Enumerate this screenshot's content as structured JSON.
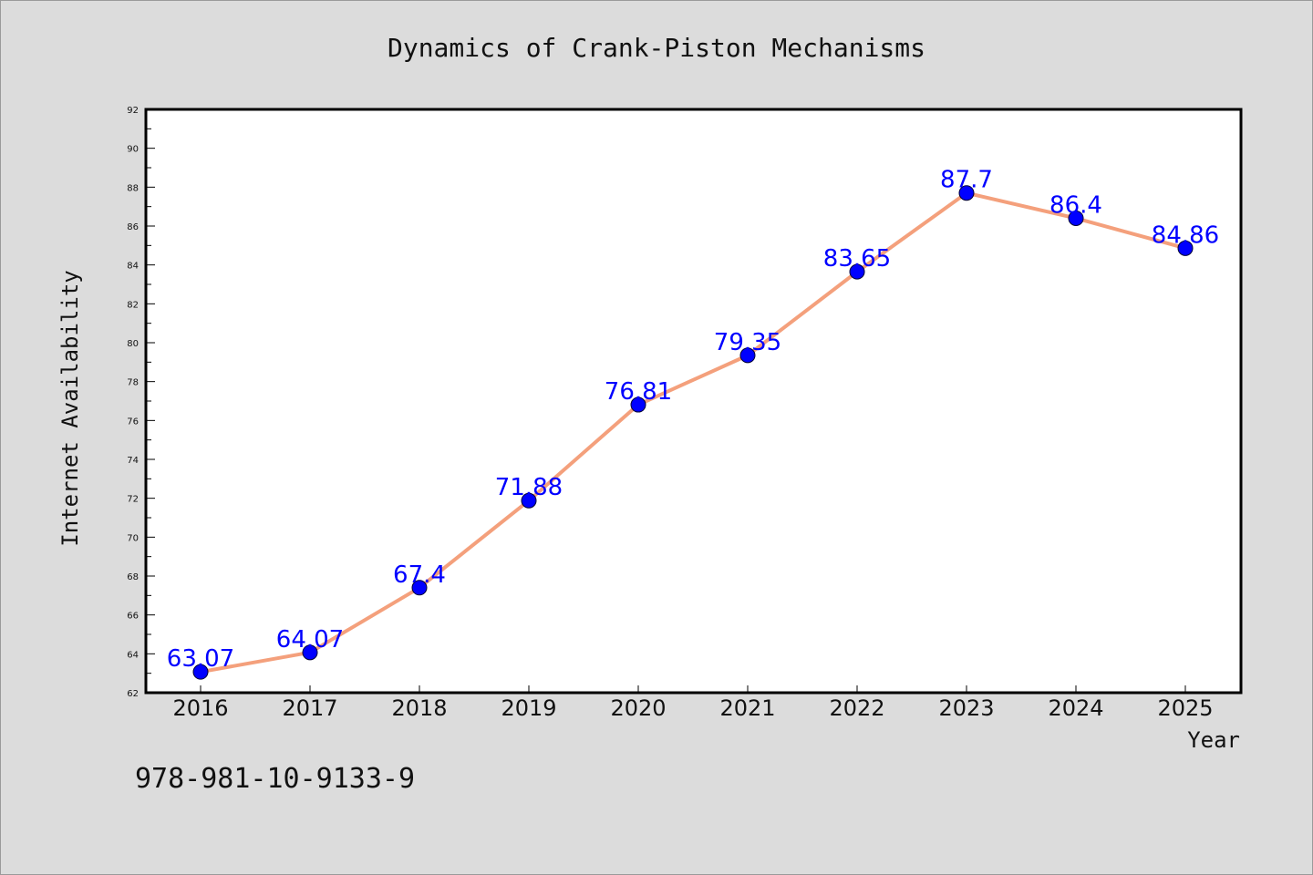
{
  "chart_data": {
    "type": "line",
    "title": "Dynamics of Crank-Piston Mechanisms",
    "xlabel": "Year",
    "ylabel": "Internet Availability",
    "categories": [
      "2016",
      "2017",
      "2018",
      "2019",
      "2020",
      "2021",
      "2022",
      "2023",
      "2024",
      "2025"
    ],
    "values": [
      63.07,
      64.07,
      67.4,
      71.88,
      76.81,
      79.35,
      83.65,
      87.7,
      86.4,
      84.86
    ],
    "data_labels": [
      "63.07",
      "64.07",
      "67.4",
      "71.88",
      "76.81",
      "79.35",
      "83.65",
      "87.7",
      "86.4",
      "84.86"
    ],
    "ylim": [
      62,
      92
    ],
    "yticks": [
      62,
      64,
      66,
      68,
      70,
      72,
      74,
      76,
      78,
      80,
      82,
      84,
      86,
      88,
      90,
      92
    ],
    "grid": false,
    "line_color": "#f4a07c",
    "marker_color": "#0000ff",
    "label_color": "#0000ff"
  },
  "footer_text": "978-981-10-9133-9"
}
